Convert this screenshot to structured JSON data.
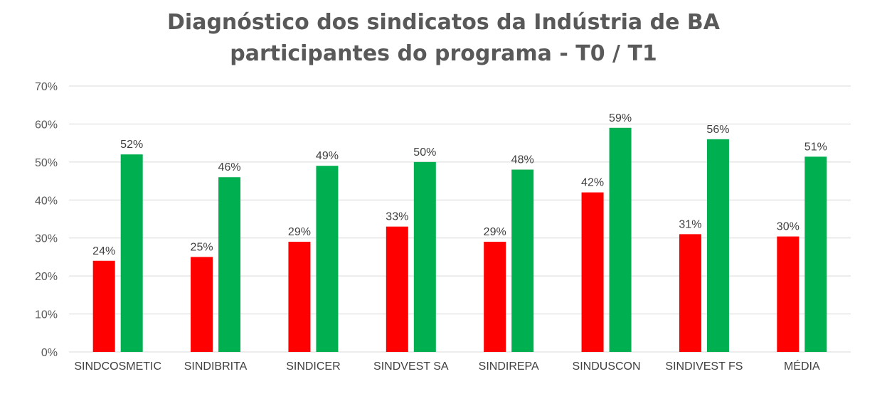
{
  "chart_data": {
    "type": "bar",
    "title_lines": [
      "Diagnóstico dos sindicatos da Indústria de BA",
      "participantes do programa - T0 / T1"
    ],
    "categories": [
      "SINDCOSMETIC",
      "SINDIBRITA",
      "SINDICER",
      "SINDVEST SA",
      "SINDIREPA",
      "SINDUSCON",
      "SINDIVEST FS",
      "MÉDIA"
    ],
    "series": [
      {
        "color": "#ff0000",
        "values": [
          24,
          25,
          29,
          33,
          29,
          42,
          31,
          30.4
        ],
        "labels": [
          "24%",
          "25%",
          "29%",
          "33%",
          "29%",
          "42%",
          "31%",
          "30%"
        ]
      },
      {
        "color": "#00b050",
        "values": [
          52,
          46,
          49,
          50,
          48,
          59,
          56,
          51.4
        ],
        "labels": [
          "52%",
          "46%",
          "49%",
          "50%",
          "48%",
          "59%",
          "56%",
          "51%"
        ]
      }
    ],
    "ylim": [
      0,
      70
    ],
    "yticks": [
      0,
      10,
      20,
      30,
      40,
      50,
      60,
      70
    ],
    "ytick_labels": [
      "0%",
      "10%",
      "20%",
      "30%",
      "40%",
      "50%",
      "60%",
      "70%"
    ],
    "grid": true,
    "legend": "none",
    "gridline_color": "#d9d9d9"
  }
}
